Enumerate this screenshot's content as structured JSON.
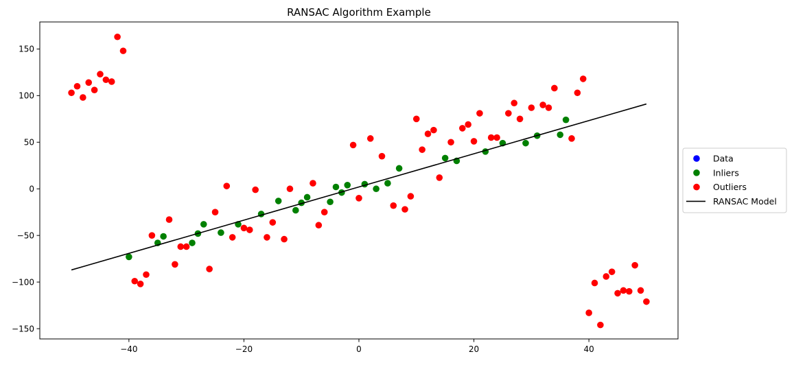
{
  "chart_data": {
    "type": "scatter",
    "title": "RANSAC Algorithm Example",
    "xlabel": "",
    "ylabel": "",
    "xlim": [
      -55.5,
      55.5
    ],
    "ylim": [
      -161,
      179
    ],
    "x_ticks": [
      -40,
      -20,
      0,
      20,
      40
    ],
    "y_ticks": [
      -150,
      -100,
      -50,
      0,
      50,
      100,
      150
    ],
    "grid": false,
    "legend": {
      "placement": "center-right outside",
      "entries": [
        {
          "label": "Data",
          "marker": "circle",
          "color": "#0000ff"
        },
        {
          "label": "Inliers",
          "marker": "circle",
          "color": "#008000"
        },
        {
          "label": "Outliers",
          "marker": "circle",
          "color": "#ff0000"
        },
        {
          "label": "RANSAC Model",
          "marker": "line",
          "color": "#000000"
        }
      ]
    },
    "series": [
      {
        "name": "Inliers",
        "color": "#008000",
        "points": [
          [
            -40,
            -73
          ],
          [
            -35,
            -58
          ],
          [
            -34,
            -51
          ],
          [
            -29,
            -58
          ],
          [
            -28,
            -48
          ],
          [
            -27,
            -38
          ],
          [
            -24,
            -47
          ],
          [
            -21,
            -38
          ],
          [
            -17,
            -27
          ],
          [
            -14,
            -13
          ],
          [
            -11,
            -23
          ],
          [
            -10,
            -15
          ],
          [
            -9,
            -9
          ],
          [
            -5,
            -14
          ],
          [
            -4,
            2
          ],
          [
            -3,
            -4
          ],
          [
            -2,
            4
          ],
          [
            1,
            5
          ],
          [
            3,
            0
          ],
          [
            5,
            6
          ],
          [
            7,
            22
          ],
          [
            15,
            33
          ],
          [
            17,
            30
          ],
          [
            22,
            40
          ],
          [
            25,
            49
          ],
          [
            29,
            49
          ],
          [
            31,
            57
          ],
          [
            35,
            58
          ],
          [
            36,
            74
          ]
        ]
      },
      {
        "name": "Outliers",
        "color": "#ff0000",
        "points": [
          [
            -50,
            103
          ],
          [
            -49,
            110
          ],
          [
            -48,
            98
          ],
          [
            -47,
            114
          ],
          [
            -46,
            106
          ],
          [
            -45,
            123
          ],
          [
            -44,
            117
          ],
          [
            -43,
            115
          ],
          [
            -42,
            163
          ],
          [
            -41,
            148
          ],
          [
            -39,
            -99
          ],
          [
            -38,
            -102
          ],
          [
            -37,
            -92
          ],
          [
            -36,
            -50
          ],
          [
            -33,
            -33
          ],
          [
            -32,
            -81
          ],
          [
            -31,
            -62
          ],
          [
            -30,
            -62
          ],
          [
            -26,
            -86
          ],
          [
            -25,
            -25
          ],
          [
            -23,
            3
          ],
          [
            -22,
            -52
          ],
          [
            -20,
            -42
          ],
          [
            -19,
            -44
          ],
          [
            -18,
            -1
          ],
          [
            -16,
            -52
          ],
          [
            -15,
            -36
          ],
          [
            -13,
            -54
          ],
          [
            -12,
            0
          ],
          [
            -8,
            6
          ],
          [
            -7,
            -39
          ],
          [
            -6,
            -25
          ],
          [
            -1,
            47
          ],
          [
            0,
            -10
          ],
          [
            2,
            54
          ],
          [
            4,
            35
          ],
          [
            6,
            -18
          ],
          [
            8,
            -22
          ],
          [
            9,
            -8
          ],
          [
            10,
            75
          ],
          [
            11,
            42
          ],
          [
            12,
            59
          ],
          [
            13,
            63
          ],
          [
            14,
            12
          ],
          [
            16,
            50
          ],
          [
            18,
            65
          ],
          [
            19,
            69
          ],
          [
            20,
            51
          ],
          [
            21,
            81
          ],
          [
            23,
            55
          ],
          [
            24,
            55
          ],
          [
            26,
            81
          ],
          [
            27,
            92
          ],
          [
            28,
            75
          ],
          [
            30,
            87
          ],
          [
            32,
            90
          ],
          [
            33,
            87
          ],
          [
            34,
            108
          ],
          [
            37,
            54
          ],
          [
            38,
            103
          ],
          [
            39,
            118
          ],
          [
            40,
            -133
          ],
          [
            41,
            -101
          ],
          [
            42,
            -146
          ],
          [
            43,
            -94
          ],
          [
            44,
            -89
          ],
          [
            45,
            -112
          ],
          [
            46,
            -109
          ],
          [
            47,
            -110
          ],
          [
            48,
            -82
          ],
          [
            49,
            -109
          ],
          [
            50,
            -121
          ]
        ]
      }
    ],
    "model_line": {
      "name": "RANSAC Model",
      "color": "#000000",
      "points": [
        [
          -50,
          -87
        ],
        [
          50,
          91
        ]
      ]
    }
  }
}
